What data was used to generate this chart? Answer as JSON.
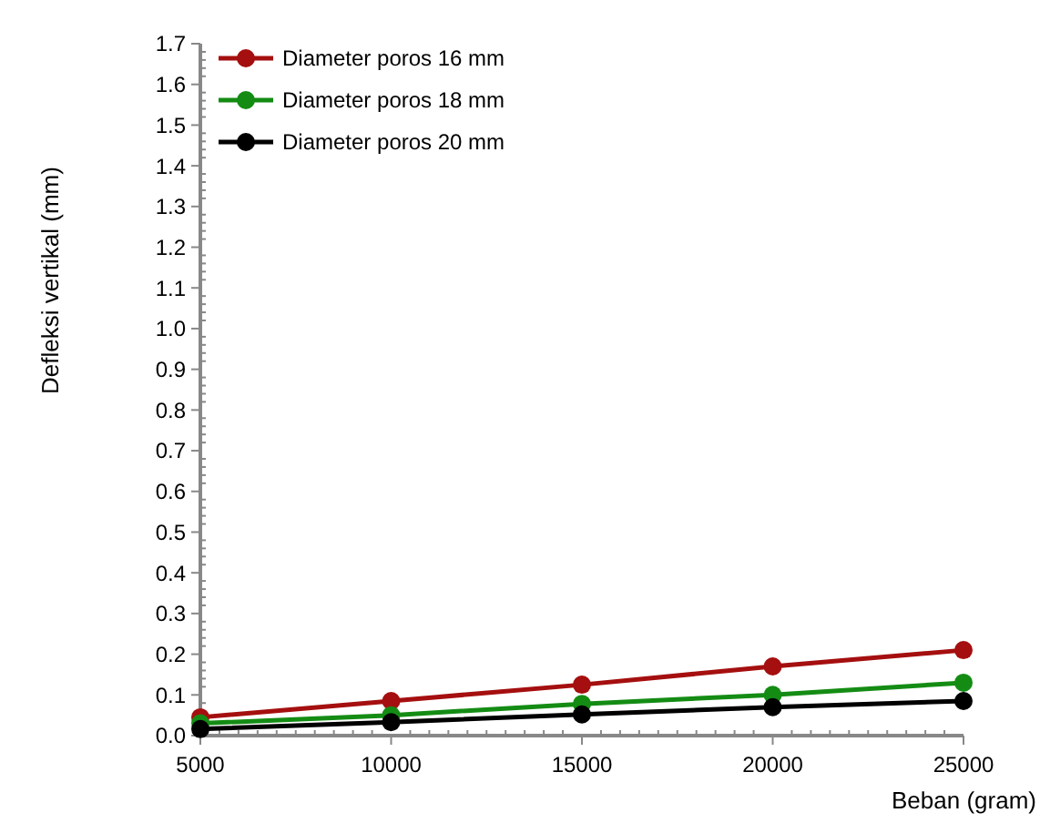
{
  "chart_data": {
    "type": "line",
    "xlabel": "Beban (gram)",
    "ylabel": "Defleksi vertikal (mm)",
    "x": [
      5000,
      10000,
      15000,
      20000,
      25000
    ],
    "series": [
      {
        "name": "Diameter poros 16 mm",
        "color": "#a50f0f",
        "values": [
          0.045,
          0.085,
          0.125,
          0.17,
          0.21
        ]
      },
      {
        "name": "Diameter poros 18 mm",
        "color": "#148c14",
        "values": [
          0.03,
          0.05,
          0.078,
          0.1,
          0.13
        ]
      },
      {
        "name": "Diameter poros 20 mm",
        "color": "#000000",
        "values": [
          0.016,
          0.033,
          0.052,
          0.07,
          0.085
        ]
      }
    ],
    "xlim": [
      5000,
      25000
    ],
    "xticks": [
      5000,
      10000,
      15000,
      20000,
      25000
    ],
    "ylim": [
      0,
      1.7
    ],
    "yticks": [
      {
        "value": 0,
        "label": "0.0"
      },
      0.1,
      0.2,
      0.3,
      0.4,
      0.5,
      0.6,
      0.7,
      0.8,
      0.9,
      {
        "value": 1,
        "label": "1.0"
      },
      1.1,
      1.2,
      1.3,
      1.4,
      1.5,
      1.6,
      1.7
    ],
    "grid": false,
    "legend": "top left",
    "marker": "circle",
    "line_style": "solid"
  }
}
